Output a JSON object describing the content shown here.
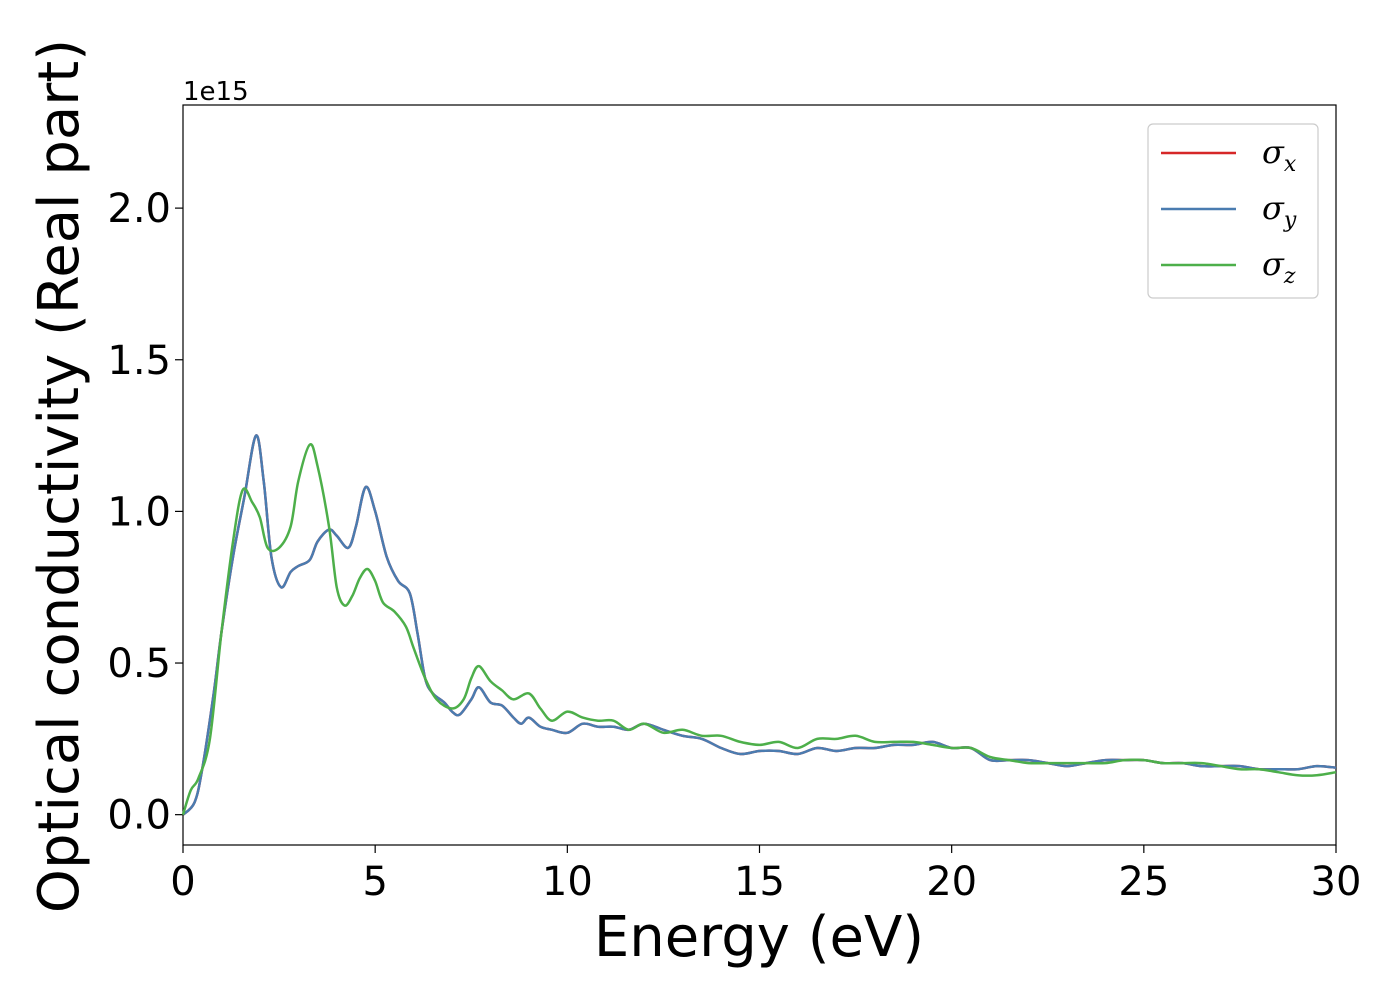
{
  "chart_data": {
    "type": "line",
    "title": "",
    "xlabel": "Energy (eV)",
    "ylabel": "Optical conductivity (Real part)",
    "y_offset_label": "1e15",
    "xlim": [
      0,
      30
    ],
    "ylim": [
      -0.1,
      2.34
    ],
    "x_ticks": [
      0,
      5,
      10,
      15,
      20,
      25,
      30
    ],
    "x_tick_labels": [
      "0",
      "5",
      "10",
      "15",
      "20",
      "25",
      "30"
    ],
    "y_ticks": [
      0.0,
      0.5,
      1.0,
      1.5,
      2.0
    ],
    "y_tick_labels": [
      "0.0",
      "0.5",
      "1.0",
      "1.5",
      "2.0"
    ],
    "grid": false,
    "legend_position": "top-right",
    "series": [
      {
        "name": "x",
        "color": "#d62728",
        "x": [
          0,
          0.3,
          0.5,
          0.8,
          1.0,
          1.3,
          1.6,
          1.9,
          2.1,
          2.3,
          2.55,
          2.8,
          3.0,
          3.3,
          3.5,
          3.8,
          4.0,
          4.3,
          4.5,
          4.75,
          5.0,
          5.3,
          5.6,
          5.9,
          6.1,
          6.3,
          6.5,
          6.8,
          7.0,
          7.2,
          7.5,
          7.7,
          8.0,
          8.3,
          8.6,
          8.8,
          9.0,
          9.3,
          9.6,
          10.0,
          10.4,
          10.8,
          11.2,
          11.6,
          12.0,
          12.5,
          13.0,
          13.5,
          14.0,
          14.5,
          15.0,
          15.5,
          16.0,
          16.5,
          17.0,
          17.5,
          18.0,
          18.5,
          19.0,
          19.5,
          20.0,
          20.5,
          21.0,
          21.5,
          22.0,
          22.5,
          23.0,
          23.5,
          24.0,
          24.5,
          25.0,
          25.5,
          26.0,
          26.5,
          27.0,
          27.5,
          28.0,
          28.5,
          29.0,
          29.5,
          30.0
        ],
        "values": [
          0,
          0.04,
          0.15,
          0.4,
          0.6,
          0.85,
          1.05,
          1.25,
          1.1,
          0.85,
          0.75,
          0.8,
          0.82,
          0.84,
          0.9,
          0.94,
          0.92,
          0.88,
          0.95,
          1.08,
          1.0,
          0.85,
          0.77,
          0.73,
          0.6,
          0.45,
          0.4,
          0.37,
          0.34,
          0.33,
          0.38,
          0.42,
          0.37,
          0.36,
          0.32,
          0.3,
          0.32,
          0.29,
          0.28,
          0.27,
          0.3,
          0.29,
          0.29,
          0.28,
          0.3,
          0.28,
          0.26,
          0.25,
          0.22,
          0.2,
          0.21,
          0.21,
          0.2,
          0.22,
          0.21,
          0.22,
          0.22,
          0.23,
          0.23,
          0.24,
          0.22,
          0.22,
          0.18,
          0.18,
          0.18,
          0.17,
          0.16,
          0.17,
          0.18,
          0.18,
          0.18,
          0.17,
          0.17,
          0.16,
          0.16,
          0.16,
          0.15,
          0.15,
          0.15,
          0.16,
          0.155
        ]
      },
      {
        "name": "y",
        "color": "#4a7cb0",
        "x": [
          0,
          0.3,
          0.5,
          0.8,
          1.0,
          1.3,
          1.6,
          1.9,
          2.1,
          2.3,
          2.55,
          2.8,
          3.0,
          3.3,
          3.5,
          3.8,
          4.0,
          4.3,
          4.5,
          4.75,
          5.0,
          5.3,
          5.6,
          5.9,
          6.1,
          6.3,
          6.5,
          6.8,
          7.0,
          7.2,
          7.5,
          7.7,
          8.0,
          8.3,
          8.6,
          8.8,
          9.0,
          9.3,
          9.6,
          10.0,
          10.4,
          10.8,
          11.2,
          11.6,
          12.0,
          12.5,
          13.0,
          13.5,
          14.0,
          14.5,
          15.0,
          15.5,
          16.0,
          16.5,
          17.0,
          17.5,
          18.0,
          18.5,
          19.0,
          19.5,
          20.0,
          20.5,
          21.0,
          21.5,
          22.0,
          22.5,
          23.0,
          23.5,
          24.0,
          24.5,
          25.0,
          25.5,
          26.0,
          26.5,
          27.0,
          27.5,
          28.0,
          28.5,
          29.0,
          29.5,
          30.0
        ],
        "values": [
          0,
          0.04,
          0.15,
          0.4,
          0.6,
          0.85,
          1.05,
          1.25,
          1.1,
          0.85,
          0.75,
          0.8,
          0.82,
          0.84,
          0.9,
          0.94,
          0.92,
          0.88,
          0.95,
          1.08,
          1.0,
          0.85,
          0.77,
          0.73,
          0.6,
          0.45,
          0.4,
          0.37,
          0.34,
          0.33,
          0.38,
          0.42,
          0.37,
          0.36,
          0.32,
          0.3,
          0.32,
          0.29,
          0.28,
          0.27,
          0.3,
          0.29,
          0.29,
          0.28,
          0.3,
          0.28,
          0.26,
          0.25,
          0.22,
          0.2,
          0.21,
          0.21,
          0.2,
          0.22,
          0.21,
          0.22,
          0.22,
          0.23,
          0.23,
          0.24,
          0.22,
          0.22,
          0.18,
          0.18,
          0.18,
          0.17,
          0.16,
          0.17,
          0.18,
          0.18,
          0.18,
          0.17,
          0.17,
          0.16,
          0.16,
          0.16,
          0.15,
          0.15,
          0.15,
          0.16,
          0.155
        ]
      },
      {
        "name": "z",
        "color": "#4daf4a",
        "x": [
          0,
          0.2,
          0.4,
          0.7,
          1.0,
          1.3,
          1.55,
          1.8,
          2.0,
          2.2,
          2.5,
          2.8,
          3.0,
          3.3,
          3.5,
          3.8,
          4.0,
          4.2,
          4.4,
          4.6,
          4.8,
          5.0,
          5.2,
          5.5,
          5.8,
          6.0,
          6.3,
          6.6,
          7.0,
          7.3,
          7.5,
          7.7,
          8.0,
          8.3,
          8.6,
          9.0,
          9.3,
          9.6,
          10.0,
          10.4,
          10.8,
          11.2,
          11.6,
          12.0,
          12.5,
          13.0,
          13.5,
          14.0,
          14.5,
          15.0,
          15.5,
          16.0,
          16.5,
          17.0,
          17.5,
          18.0,
          18.5,
          19.0,
          19.5,
          20.0,
          20.5,
          21.0,
          21.5,
          22.0,
          22.5,
          23.0,
          23.5,
          24.0,
          24.5,
          25.0,
          25.5,
          26.0,
          26.5,
          27.0,
          27.5,
          28.0,
          28.5,
          29.0,
          29.5,
          30.0
        ],
        "values": [
          0,
          0.08,
          0.12,
          0.25,
          0.6,
          0.9,
          1.07,
          1.03,
          0.98,
          0.88,
          0.88,
          0.95,
          1.1,
          1.22,
          1.15,
          0.95,
          0.75,
          0.69,
          0.72,
          0.78,
          0.81,
          0.77,
          0.7,
          0.67,
          0.62,
          0.55,
          0.45,
          0.38,
          0.35,
          0.38,
          0.45,
          0.49,
          0.44,
          0.41,
          0.38,
          0.4,
          0.35,
          0.31,
          0.34,
          0.32,
          0.31,
          0.31,
          0.28,
          0.3,
          0.27,
          0.28,
          0.26,
          0.26,
          0.24,
          0.23,
          0.24,
          0.22,
          0.25,
          0.25,
          0.26,
          0.24,
          0.24,
          0.24,
          0.23,
          0.22,
          0.22,
          0.19,
          0.18,
          0.17,
          0.17,
          0.17,
          0.17,
          0.17,
          0.18,
          0.18,
          0.17,
          0.17,
          0.17,
          0.16,
          0.15,
          0.15,
          0.14,
          0.13,
          0.13,
          0.14
        ]
      }
    ]
  }
}
